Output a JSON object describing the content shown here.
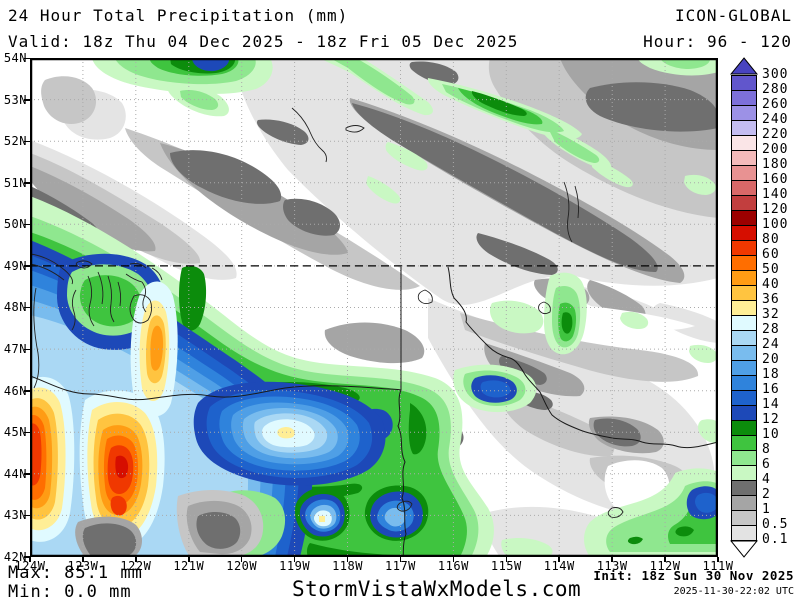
{
  "header": {
    "title": "24 Hour Total Precipitation (mm)",
    "model": "ICON-GLOBAL",
    "valid": "Valid: 18z Thu 04 Dec 2025 - 18z Fri 05 Dec 2025",
    "hour": "Hour: 96 - 120"
  },
  "footer": {
    "max": "Max: 85.1 mm",
    "min": "Min: 0.0 mm",
    "watermark": "StormVistaWxModels.com",
    "init": "Init: 18z Sun 30 Nov 2025",
    "generated": "2025-11-30-22:02 UTC"
  },
  "axes": {
    "lat_labels": [
      "54N",
      "53N",
      "52N",
      "51N",
      "50N",
      "49N",
      "48N",
      "47N",
      "46N",
      "45N",
      "44N",
      "43N",
      "42N"
    ],
    "lon_labels": [
      "124W",
      "123W",
      "122W",
      "121W",
      "120W",
      "119W",
      "118W",
      "117W",
      "116W",
      "115W",
      "114W",
      "113W",
      "112W",
      "111W"
    ]
  },
  "legend": {
    "boundary_labels": [
      "300",
      "280",
      "260",
      "240",
      "220",
      "200",
      "180",
      "160",
      "140",
      "120",
      "100",
      "80",
      "60",
      "50",
      "40",
      "36",
      "32",
      "28",
      "24",
      "20",
      "18",
      "16",
      "14",
      "12",
      "10",
      "8",
      "6",
      "4",
      "2",
      "1",
      "0.5",
      "0.1"
    ],
    "box_colors_top_to_bottom": [
      "#6156CC",
      "#7D70DA",
      "#9C91E6",
      "#C4BDF1",
      "#FAE5E7",
      "#F4BABA",
      "#E89292",
      "#D96868",
      "#C23E3E",
      "#9C0000",
      "#D60E00",
      "#F03800",
      "#FF6E00",
      "#FF9C14",
      "#FFC440",
      "#FFEE96",
      "#E0FAFF",
      "#AAD8F4",
      "#79BCEE",
      "#4F9FE6",
      "#2F83DC",
      "#1E62CC",
      "#1D49B8",
      "#0C8C0C",
      "#3FC43F",
      "#8FE78F",
      "#C9F8C3",
      "#6F6F6F",
      "#A5A5A5",
      "#C6C6C6",
      "#E3E3E3"
    ],
    "arrow_top_color": "#4843C0",
    "arrow_bottom_color": "#FFFFFF"
  },
  "chart_data": {
    "type": "heatmap",
    "title": "24 Hour Total Precipitation (mm)",
    "model": "ICON-GLOBAL",
    "valid_period": "18z Thu 04 Dec 2025 - 18z Fri 05 Dec 2025",
    "forecast_hour_range": [
      96,
      120
    ],
    "init_time": "18z Sun 30 Nov 2025",
    "generated_timestamp": "2025-11-30-22:02 UTC",
    "units": "mm",
    "max_value_mm": 85.1,
    "min_value_mm": 0.0,
    "lat_range_deg_N": [
      42,
      54
    ],
    "lon_range_deg_W": [
      124,
      111
    ],
    "graticule": "1-degree dotted grid; black dashed line along 49N (US-Canada border); state borders and coastlines drawn",
    "colorbar_levels_mm": [
      0.1,
      0.5,
      1,
      2,
      4,
      6,
      8,
      10,
      12,
      14,
      16,
      18,
      20,
      24,
      28,
      32,
      36,
      40,
      50,
      60,
      80,
      100,
      120,
      140,
      160,
      180,
      200,
      220,
      240,
      260,
      280,
      300
    ],
    "colorbar_colors_low_to_high": [
      "#E3E3E3",
      "#C6C6C6",
      "#A5A5A5",
      "#6F6F6F",
      "#C9F8C3",
      "#8FE78F",
      "#3FC43F",
      "#0C8C0C",
      "#1D49B8",
      "#1E62CC",
      "#2F83DC",
      "#4F9FE6",
      "#79BCEE",
      "#AAD8F4",
      "#E0FAFF",
      "#FFEE96",
      "#FFC440",
      "#FF9C14",
      "#FF6E00",
      "#F03800",
      "#D60E00",
      "#9C0000",
      "#C23E3E",
      "#D96868",
      "#E89292",
      "#F4BABA",
      "#FAE5E7",
      "#C4BDF1",
      "#9C91E6",
      "#7D70DA",
      "#6156CC"
    ],
    "features": [
      {
        "region": "Coast Range and Cascades of western WA/OR (122-124W, 42-49N)",
        "precip_mm": "24-85; two elongated N-S heavy cores of 50-85 mm (orange/red)"
      },
      {
        "region": "Puget Sound lowlands (~122.5W, 47.5-48.5N)",
        "precip_mm": "6-12 local minimum ringed by 12-28"
      },
      {
        "region": "Blue Mountains of NE Oregon (~118.5-120.5W, 44-46N)",
        "precip_mm": "12-32 with small 32-36 pale center"
      },
      {
        "region": "Small maxima near 117.2W/43.5N, 118W/43.5N, 115.7W/46.3N, 111.5W/44.5N",
        "precip_mm": "12-20 spots"
      },
      {
        "region": "Southern BC / northern Rockies",
        "precip_mm": "0.1-12 banded light precipitation (gray/green diagonal streaks)"
      },
      {
        "region": "Columbia Basin and areas east of Cascades",
        "precip_mm": "<0.1-2 rain-shadow (white/gray)"
      }
    ]
  }
}
